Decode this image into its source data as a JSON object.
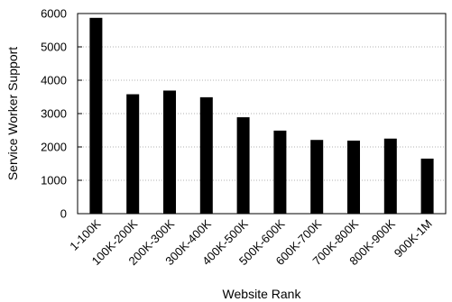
{
  "chart_data": {
    "type": "bar",
    "title": "",
    "xlabel": "Website Rank",
    "ylabel": "Service Worker Support",
    "categories": [
      "1-100K",
      "100K-200K",
      "200K-300K",
      "300K-400K",
      "400K-500K",
      "500K-600K",
      "600K-700K",
      "700K-800K",
      "800K-900K",
      "900K-1M"
    ],
    "values": [
      5870,
      3580,
      3690,
      3490,
      2890,
      2490,
      2210,
      2190,
      2250,
      1650
    ],
    "ylim": [
      0,
      6000
    ],
    "yticks": [
      0,
      1000,
      2000,
      3000,
      4000,
      5000,
      6000
    ],
    "ytick_labels": [
      "0",
      "1000",
      "2000",
      "3000",
      "4000",
      "5000",
      "6000"
    ],
    "grid": "horizontal dotted",
    "bar_color": "#000000"
  }
}
